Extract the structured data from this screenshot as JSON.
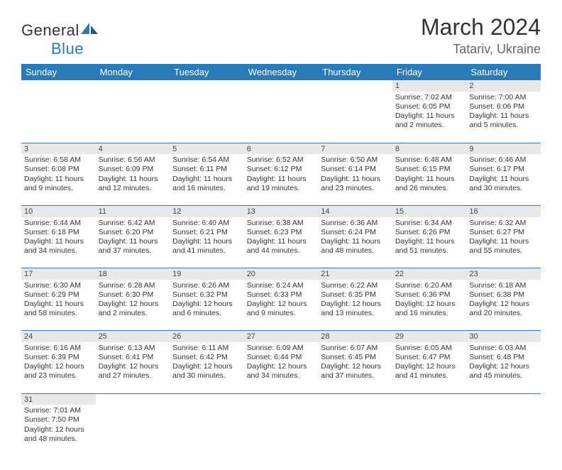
{
  "logo": {
    "text1": "General",
    "text2": "Blue"
  },
  "title": {
    "month": "March 2024",
    "location": "Tatariv, Ukraine"
  },
  "colors": {
    "header_bg": "#2a7ab8",
    "daynum_bg": "#e8e8e8",
    "row_border": "#2a7ab8"
  },
  "days": [
    "Sunday",
    "Monday",
    "Tuesday",
    "Wednesday",
    "Thursday",
    "Friday",
    "Saturday"
  ],
  "weeks": [
    {
      "nums": [
        "",
        "",
        "",
        "",
        "",
        "1",
        "2"
      ],
      "cells": [
        null,
        null,
        null,
        null,
        null,
        {
          "sunrise": "Sunrise: 7:02 AM",
          "sunset": "Sunset: 6:05 PM",
          "day1": "Daylight: 11 hours",
          "day2": "and 2 minutes."
        },
        {
          "sunrise": "Sunrise: 7:00 AM",
          "sunset": "Sunset: 6:06 PM",
          "day1": "Daylight: 11 hours",
          "day2": "and 5 minutes."
        }
      ]
    },
    {
      "nums": [
        "3",
        "4",
        "5",
        "6",
        "7",
        "8",
        "9"
      ],
      "cells": [
        {
          "sunrise": "Sunrise: 6:58 AM",
          "sunset": "Sunset: 6:08 PM",
          "day1": "Daylight: 11 hours",
          "day2": "and 9 minutes."
        },
        {
          "sunrise": "Sunrise: 6:56 AM",
          "sunset": "Sunset: 6:09 PM",
          "day1": "Daylight: 11 hours",
          "day2": "and 12 minutes."
        },
        {
          "sunrise": "Sunrise: 6:54 AM",
          "sunset": "Sunset: 6:11 PM",
          "day1": "Daylight: 11 hours",
          "day2": "and 16 minutes."
        },
        {
          "sunrise": "Sunrise: 6:52 AM",
          "sunset": "Sunset: 6:12 PM",
          "day1": "Daylight: 11 hours",
          "day2": "and 19 minutes."
        },
        {
          "sunrise": "Sunrise: 6:50 AM",
          "sunset": "Sunset: 6:14 PM",
          "day1": "Daylight: 11 hours",
          "day2": "and 23 minutes."
        },
        {
          "sunrise": "Sunrise: 6:48 AM",
          "sunset": "Sunset: 6:15 PM",
          "day1": "Daylight: 11 hours",
          "day2": "and 26 minutes."
        },
        {
          "sunrise": "Sunrise: 6:46 AM",
          "sunset": "Sunset: 6:17 PM",
          "day1": "Daylight: 11 hours",
          "day2": "and 30 minutes."
        }
      ]
    },
    {
      "nums": [
        "10",
        "11",
        "12",
        "13",
        "14",
        "15",
        "16"
      ],
      "cells": [
        {
          "sunrise": "Sunrise: 6:44 AM",
          "sunset": "Sunset: 6:18 PM",
          "day1": "Daylight: 11 hours",
          "day2": "and 34 minutes."
        },
        {
          "sunrise": "Sunrise: 6:42 AM",
          "sunset": "Sunset: 6:20 PM",
          "day1": "Daylight: 11 hours",
          "day2": "and 37 minutes."
        },
        {
          "sunrise": "Sunrise: 6:40 AM",
          "sunset": "Sunset: 6:21 PM",
          "day1": "Daylight: 11 hours",
          "day2": "and 41 minutes."
        },
        {
          "sunrise": "Sunrise: 6:38 AM",
          "sunset": "Sunset: 6:23 PM",
          "day1": "Daylight: 11 hours",
          "day2": "and 44 minutes."
        },
        {
          "sunrise": "Sunrise: 6:36 AM",
          "sunset": "Sunset: 6:24 PM",
          "day1": "Daylight: 11 hours",
          "day2": "and 48 minutes."
        },
        {
          "sunrise": "Sunrise: 6:34 AM",
          "sunset": "Sunset: 6:26 PM",
          "day1": "Daylight: 11 hours",
          "day2": "and 51 minutes."
        },
        {
          "sunrise": "Sunrise: 6:32 AM",
          "sunset": "Sunset: 6:27 PM",
          "day1": "Daylight: 11 hours",
          "day2": "and 55 minutes."
        }
      ]
    },
    {
      "nums": [
        "17",
        "18",
        "19",
        "20",
        "21",
        "22",
        "23"
      ],
      "cells": [
        {
          "sunrise": "Sunrise: 6:30 AM",
          "sunset": "Sunset: 6:29 PM",
          "day1": "Daylight: 11 hours",
          "day2": "and 58 minutes."
        },
        {
          "sunrise": "Sunrise: 6:28 AM",
          "sunset": "Sunset: 6:30 PM",
          "day1": "Daylight: 12 hours",
          "day2": "and 2 minutes."
        },
        {
          "sunrise": "Sunrise: 6:26 AM",
          "sunset": "Sunset: 6:32 PM",
          "day1": "Daylight: 12 hours",
          "day2": "and 6 minutes."
        },
        {
          "sunrise": "Sunrise: 6:24 AM",
          "sunset": "Sunset: 6:33 PM",
          "day1": "Daylight: 12 hours",
          "day2": "and 9 minutes."
        },
        {
          "sunrise": "Sunrise: 6:22 AM",
          "sunset": "Sunset: 6:35 PM",
          "day1": "Daylight: 12 hours",
          "day2": "and 13 minutes."
        },
        {
          "sunrise": "Sunrise: 6:20 AM",
          "sunset": "Sunset: 6:36 PM",
          "day1": "Daylight: 12 hours",
          "day2": "and 16 minutes."
        },
        {
          "sunrise": "Sunrise: 6:18 AM",
          "sunset": "Sunset: 6:38 PM",
          "day1": "Daylight: 12 hours",
          "day2": "and 20 minutes."
        }
      ]
    },
    {
      "nums": [
        "24",
        "25",
        "26",
        "27",
        "28",
        "29",
        "30"
      ],
      "cells": [
        {
          "sunrise": "Sunrise: 6:16 AM",
          "sunset": "Sunset: 6:39 PM",
          "day1": "Daylight: 12 hours",
          "day2": "and 23 minutes."
        },
        {
          "sunrise": "Sunrise: 6:13 AM",
          "sunset": "Sunset: 6:41 PM",
          "day1": "Daylight: 12 hours",
          "day2": "and 27 minutes."
        },
        {
          "sunrise": "Sunrise: 6:11 AM",
          "sunset": "Sunset: 6:42 PM",
          "day1": "Daylight: 12 hours",
          "day2": "and 30 minutes."
        },
        {
          "sunrise": "Sunrise: 6:09 AM",
          "sunset": "Sunset: 6:44 PM",
          "day1": "Daylight: 12 hours",
          "day2": "and 34 minutes."
        },
        {
          "sunrise": "Sunrise: 6:07 AM",
          "sunset": "Sunset: 6:45 PM",
          "day1": "Daylight: 12 hours",
          "day2": "and 37 minutes."
        },
        {
          "sunrise": "Sunrise: 6:05 AM",
          "sunset": "Sunset: 6:47 PM",
          "day1": "Daylight: 12 hours",
          "day2": "and 41 minutes."
        },
        {
          "sunrise": "Sunrise: 6:03 AM",
          "sunset": "Sunset: 6:48 PM",
          "day1": "Daylight: 12 hours",
          "day2": "and 45 minutes."
        }
      ]
    },
    {
      "nums": [
        "31",
        "",
        "",
        "",
        "",
        "",
        ""
      ],
      "cells": [
        {
          "sunrise": "Sunrise: 7:01 AM",
          "sunset": "Sunset: 7:50 PM",
          "day1": "Daylight: 12 hours",
          "day2": "and 48 minutes."
        },
        null,
        null,
        null,
        null,
        null,
        null
      ]
    }
  ]
}
